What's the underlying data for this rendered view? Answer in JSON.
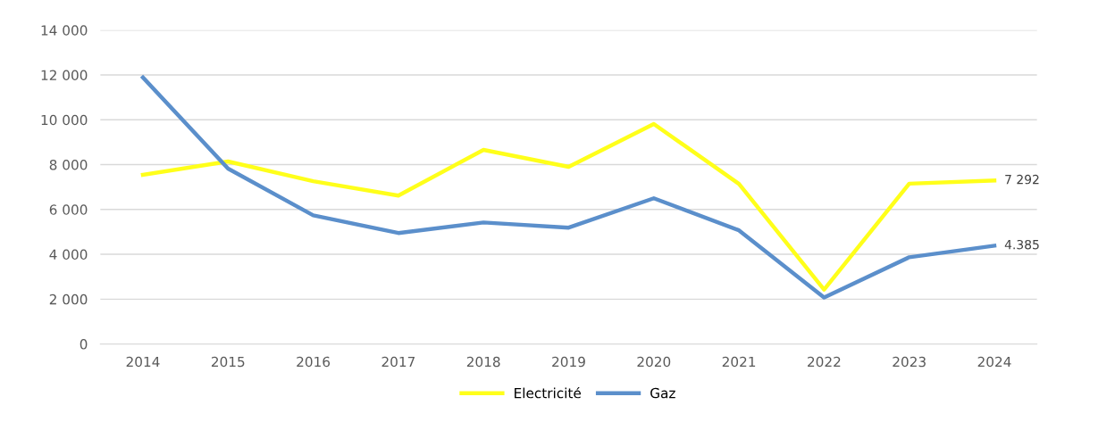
{
  "chart_data": {
    "type": "line",
    "categories": [
      "2014",
      "2015",
      "2016",
      "2017",
      "2018",
      "2019",
      "2020",
      "2021",
      "2022",
      "2023",
      "2024"
    ],
    "series": [
      {
        "name": "Electricité",
        "color": "#ffff1a",
        "values": [
          7550,
          8140,
          7260,
          6620,
          8660,
          7900,
          9810,
          7140,
          2430,
          7150,
          7292
        ],
        "value_labels": [
          null,
          null,
          null,
          null,
          null,
          null,
          null,
          null,
          null,
          null,
          "7 292"
        ]
      },
      {
        "name": "Gaz",
        "color": "#5b8fcb",
        "values": [
          11890,
          7820,
          5740,
          4950,
          5420,
          5190,
          6500,
          5070,
          2070,
          3870,
          4385
        ],
        "value_labels": [
          null,
          null,
          null,
          null,
          null,
          null,
          null,
          null,
          null,
          null,
          "4.385"
        ]
      }
    ],
    "ylim": [
      0,
      14000
    ],
    "yticks": [
      {
        "value": 0,
        "label": "0"
      },
      {
        "value": 2000,
        "label": "2 000"
      },
      {
        "value": 4000,
        "label": "4 000"
      },
      {
        "value": 6000,
        "label": "6 000"
      },
      {
        "value": 8000,
        "label": "8 000"
      },
      {
        "value": 10000,
        "label": "10 000"
      },
      {
        "value": 12000,
        "label": "12 000"
      },
      {
        "value": 14000,
        "label": "14 000"
      }
    ],
    "grid": "y",
    "legend": "bottom",
    "marker": "none",
    "line_style": "solid"
  }
}
